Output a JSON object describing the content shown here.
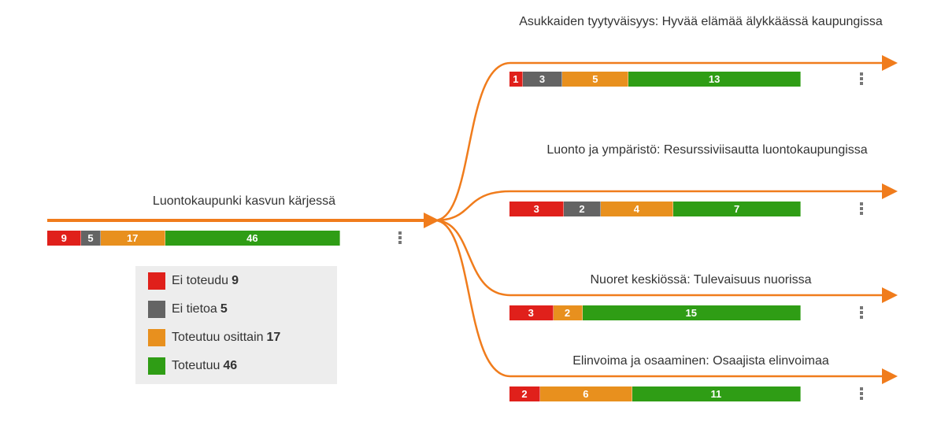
{
  "root": {
    "title": "Luontokaupunki kasvun kärjessä",
    "segments": [
      {
        "value": 9,
        "color": "#e0201b"
      },
      {
        "value": 5,
        "color": "#646464"
      },
      {
        "value": 17,
        "color": "#e8901e"
      },
      {
        "value": 46,
        "color": "#2f9d15"
      }
    ]
  },
  "legend": [
    {
      "label": "Ei toteudu",
      "count": 9,
      "color": "#e0201b"
    },
    {
      "label": "Ei tietoa",
      "count": 5,
      "color": "#646464"
    },
    {
      "label": "Toteutuu osittain",
      "count": 17,
      "color": "#e8901e"
    },
    {
      "label": "Toteutuu",
      "count": 46,
      "color": "#2f9d15"
    }
  ],
  "children": [
    {
      "title": "Asukkaiden tyytyväisyys: Hyvää elämää älykkäässä kaupungissa",
      "segments": [
        {
          "value": 1,
          "color": "#e0201b"
        },
        {
          "value": 3,
          "color": "#646464"
        },
        {
          "value": 5,
          "color": "#e8901e"
        },
        {
          "value": 13,
          "color": "#2f9d15"
        }
      ]
    },
    {
      "title": "Luonto ja ympäristö: Resurssiviisautta luontokaupungissa",
      "segments": [
        {
          "value": 3,
          "color": "#e0201b"
        },
        {
          "value": 2,
          "color": "#646464"
        },
        {
          "value": 4,
          "color": "#e8901e"
        },
        {
          "value": 7,
          "color": "#2f9d15"
        }
      ]
    },
    {
      "title": "Nuoret keskiössä: Tulevaisuus nuorissa",
      "segments": [
        {
          "value": 3,
          "color": "#e0201b"
        },
        {
          "value": 2,
          "color": "#e8901e"
        },
        {
          "value": 15,
          "color": "#2f9d15"
        }
      ]
    },
    {
      "title": "Elinvoima ja osaaminen: Osaajista elinvoimaa",
      "segments": [
        {
          "value": 2,
          "color": "#e0201b"
        },
        {
          "value": 6,
          "color": "#e8901e"
        },
        {
          "value": 11,
          "color": "#2f9d15"
        }
      ]
    }
  ]
}
